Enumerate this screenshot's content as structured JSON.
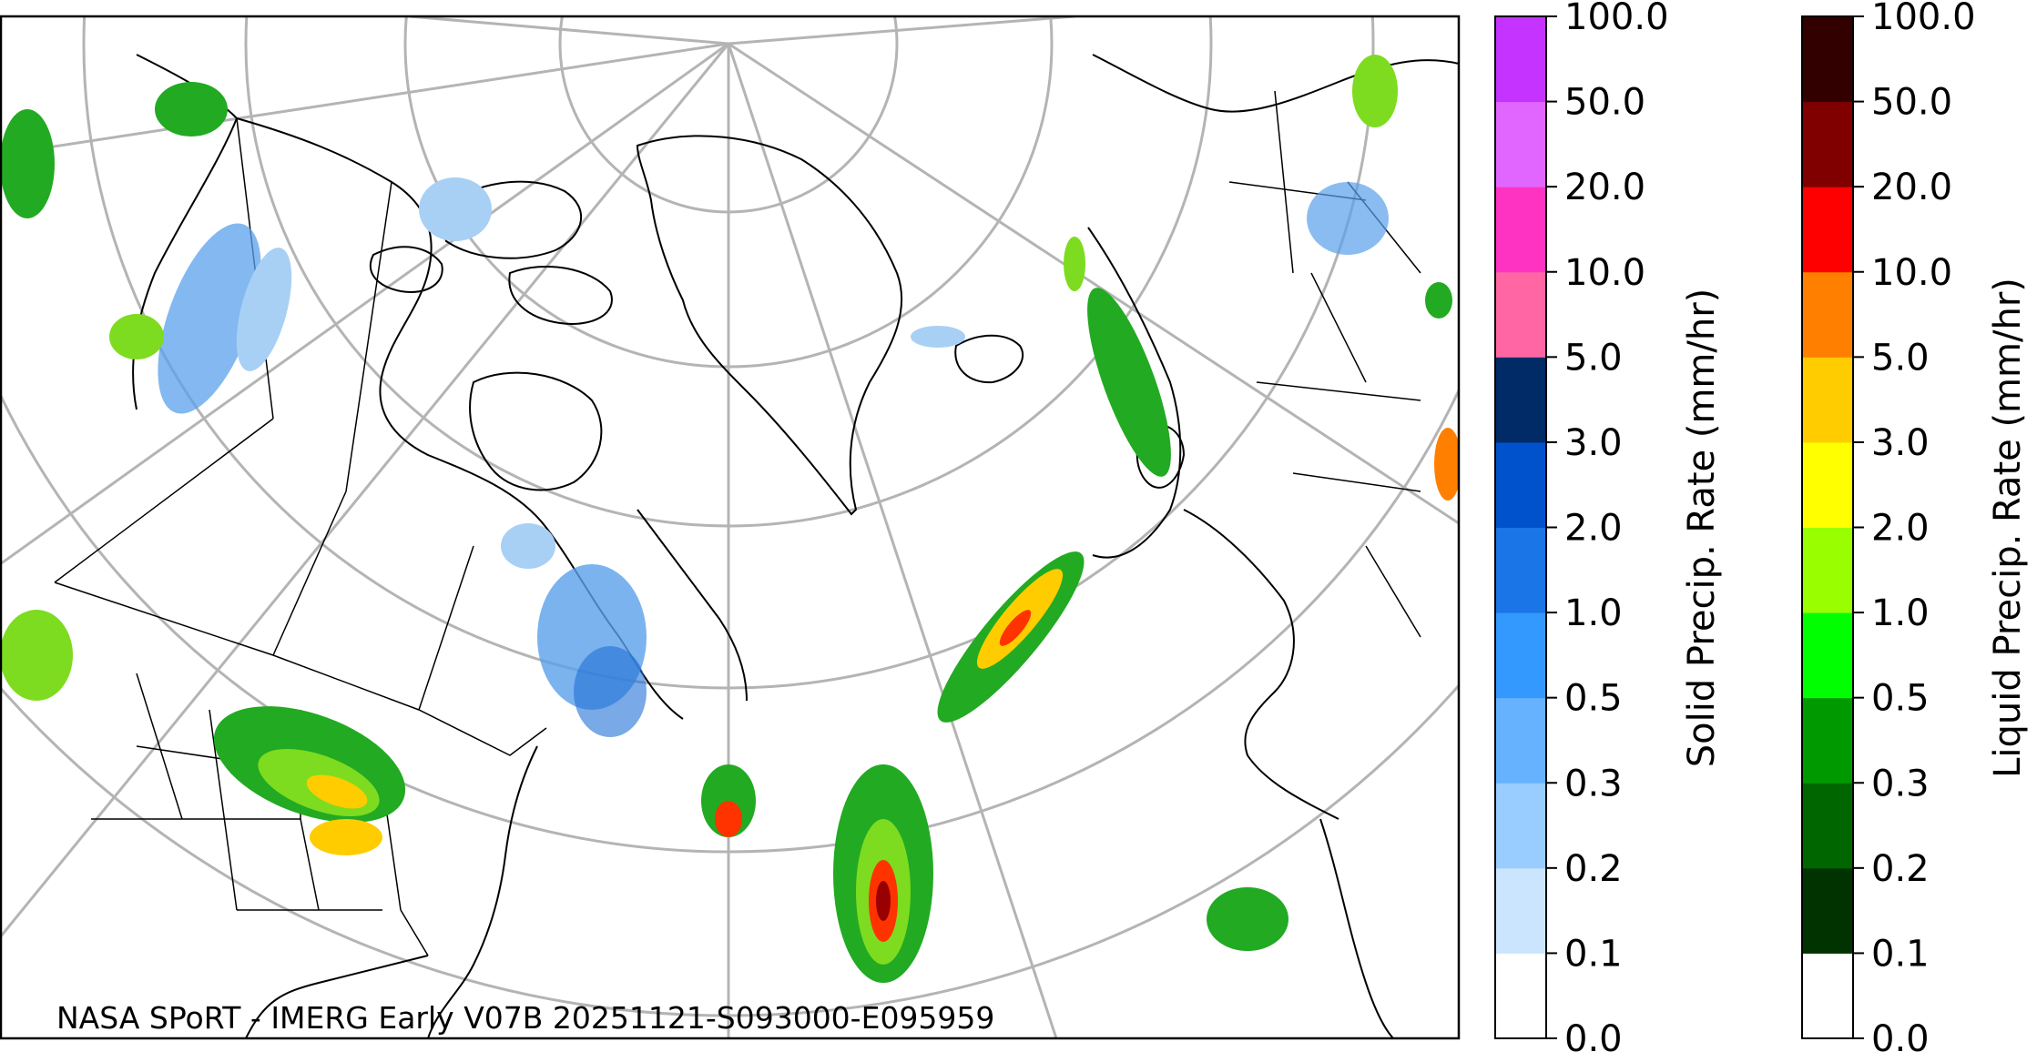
{
  "map": {
    "credit": "NASA SPoRT - IMERG Early V07B 20251121-S093000-E095959",
    "projection": "north-polar stereographic",
    "graticule": "on",
    "gridline_color": "#b4b4b4",
    "coastline_color": "#000000"
  },
  "colorbars": [
    {
      "name": "solid",
      "label": "Solid Precip. Rate (mm/hr)",
      "ticks": [
        "0.0",
        "0.1",
        "0.2",
        "0.3",
        "0.5",
        "1.0",
        "2.0",
        "3.0",
        "5.0",
        "10.0",
        "20.0",
        "50.0",
        "100.0"
      ],
      "colors": [
        "#ffffff",
        "#cce5ff",
        "#99ccff",
        "#66b2ff",
        "#3399ff",
        "#1a75e6",
        "#0052cc",
        "#002b66",
        "#ff66a3",
        "#ff33c2",
        "#e066ff",
        "#c433ff",
        "#9900cc"
      ]
    },
    {
      "name": "liquid",
      "label": "Liquid Precip. Rate (mm/hr)",
      "ticks": [
        "0.0",
        "0.1",
        "0.2",
        "0.3",
        "0.5",
        "1.0",
        "2.0",
        "3.0",
        "5.0",
        "10.0",
        "20.0",
        "50.0",
        "100.0"
      ],
      "colors": [
        "#ffffff",
        "#003300",
        "#006600",
        "#009900",
        "#00ff00",
        "#99ff00",
        "#ffff00",
        "#ffcc00",
        "#ff8000",
        "#ff0000",
        "#800000",
        "#330000"
      ]
    }
  ],
  "precip_palette": {
    "snow_light": "#a8d0f5",
    "snow_mid": "#5aa0eb",
    "snow_heavy": "#1f6fd6",
    "rain_light": "#22aa22",
    "rain_mid": "#7ddc1f",
    "rain_heavy": "#ffcc00",
    "rain_core": "#ff3300",
    "rain_extreme": "#990000"
  }
}
